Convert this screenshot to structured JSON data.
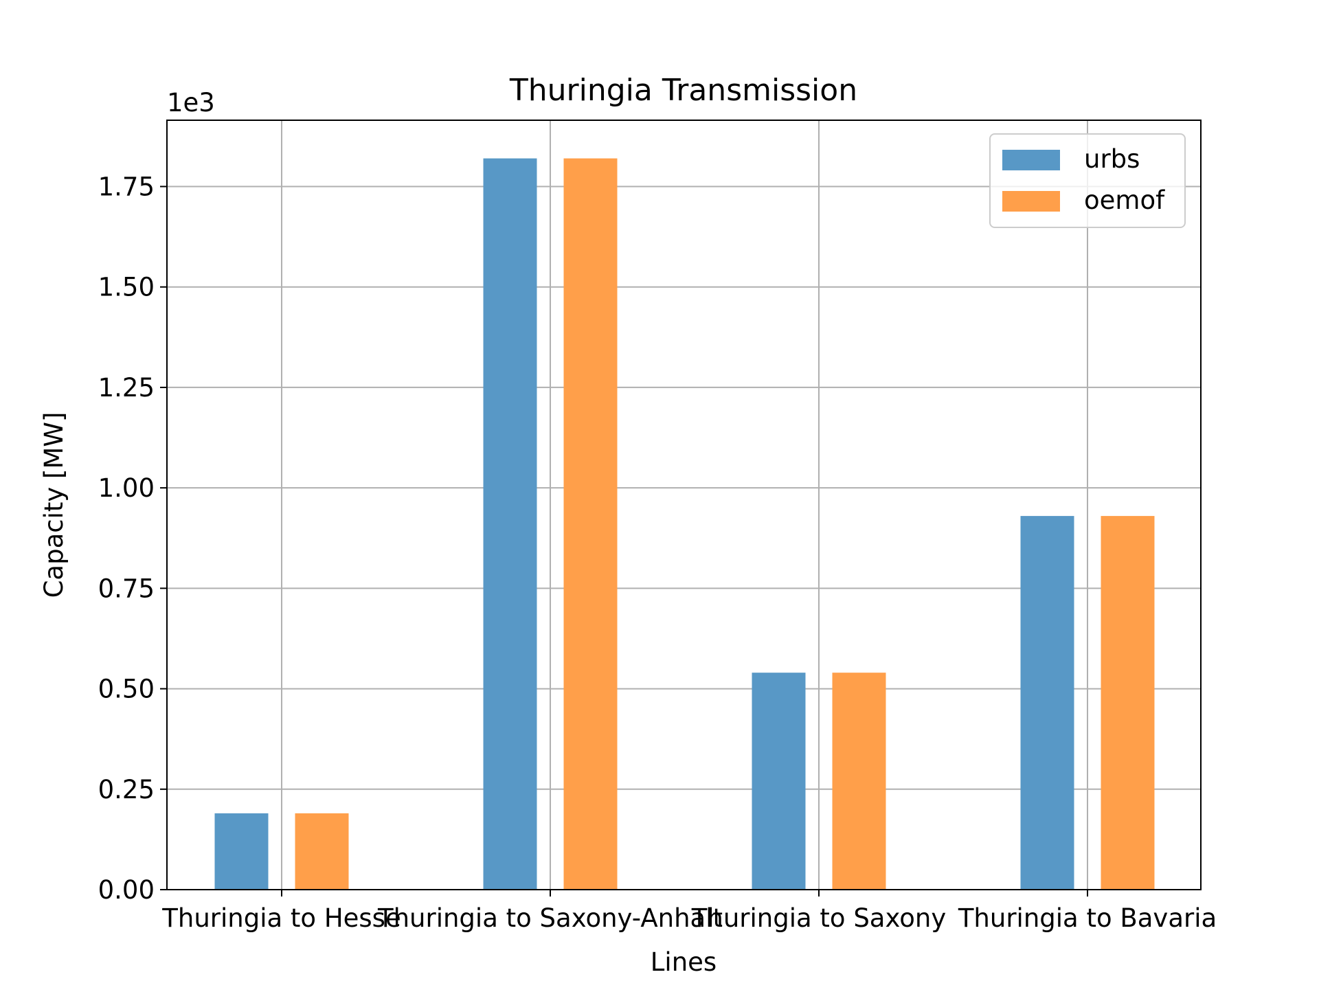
{
  "chart_data": {
    "type": "bar",
    "title": "Thuringia Transmission",
    "xlabel": "Lines",
    "ylabel": "Capacity [MW]",
    "y_offset_label": "1e3",
    "categories": [
      "Thuringia to Hesse",
      "Thuringia to Saxony-Anhalt",
      "Thuringia to Saxony",
      "Thuringia to Bavaria"
    ],
    "series": [
      {
        "name": "urbs",
        "color": "#5898c6",
        "values": [
          0.19,
          1.82,
          0.54,
          0.93
        ]
      },
      {
        "name": "oemof",
        "color": "#ff9f4a",
        "values": [
          0.19,
          1.82,
          0.54,
          0.93
        ]
      }
    ],
    "ylim": [
      0,
      1.915
    ],
    "yticks": [
      0.0,
      0.25,
      0.5,
      0.75,
      1.0,
      1.25,
      1.5,
      1.75
    ],
    "ytick_labels": [
      "0.00",
      "0.25",
      "0.50",
      "0.75",
      "1.00",
      "1.25",
      "1.50",
      "1.75"
    ],
    "grid": true,
    "legend_position": "top-right"
  }
}
